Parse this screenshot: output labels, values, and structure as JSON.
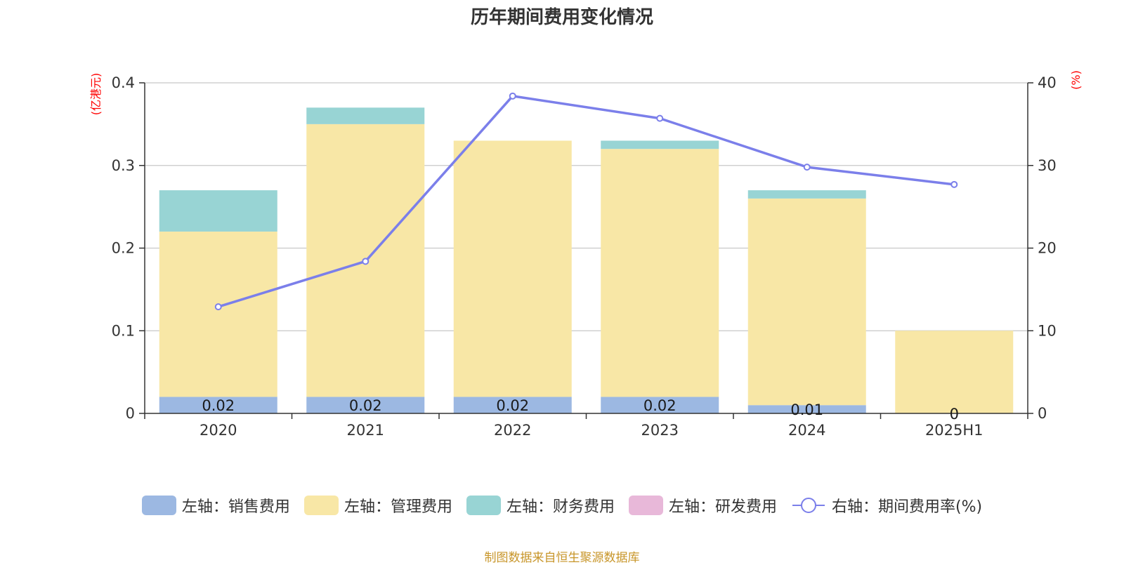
{
  "title": "历年期间费用变化情况",
  "left_axis_unit": "(亿港元)",
  "right_axis_unit": "(%)",
  "source": "制图数据来自恒生聚源数据库",
  "colors": {
    "sales": "#9cb8e2",
    "admin": "#f8e7a6",
    "finance": "#98d4d4",
    "rnd": "#e8b8d9",
    "rate": "#7b7fea",
    "unit_text": "#ff0000",
    "grid": "#c8c8c8",
    "axis": "#333333"
  },
  "legend": [
    {
      "key": "sales",
      "label": "左轴：销售费用",
      "kind": "bar"
    },
    {
      "key": "admin",
      "label": "左轴：管理费用",
      "kind": "bar"
    },
    {
      "key": "finance",
      "label": "左轴：财务费用",
      "kind": "bar"
    },
    {
      "key": "rnd",
      "label": "左轴：研发费用",
      "kind": "bar"
    },
    {
      "key": "rate",
      "label": "右轴：期间费用率(%)",
      "kind": "line"
    }
  ],
  "chart_data": {
    "type": "bar",
    "title": "历年期间费用变化情况",
    "categories": [
      "2020",
      "2021",
      "2022",
      "2023",
      "2024",
      "2025H1"
    ],
    "left_ylim": [
      0,
      0.4
    ],
    "left_ticks": [
      0,
      0.1,
      0.2,
      0.3,
      0.4
    ],
    "left_tick_labels": [
      "0",
      "0.1",
      "0.2",
      "0.3",
      "0.4"
    ],
    "right_ylim": [
      0,
      40
    ],
    "right_ticks": [
      0,
      10,
      20,
      30,
      40
    ],
    "right_tick_labels": [
      "0",
      "10",
      "20",
      "30",
      "40"
    ],
    "ylabel_left": "(亿港元)",
    "ylabel_right": "(%)",
    "grid": true,
    "legend_position": "bottom",
    "series": [
      {
        "key": "sales",
        "name": "左轴：销售费用",
        "axis": "left",
        "stack": true,
        "values": [
          0.02,
          0.02,
          0.02,
          0.02,
          0.01,
          0
        ],
        "labels": [
          "0.02",
          "0.02",
          "0.02",
          "0.02",
          "0.01",
          "0"
        ]
      },
      {
        "key": "admin",
        "name": "左轴：管理费用",
        "axis": "left",
        "stack": true,
        "values": [
          0.2,
          0.33,
          0.31,
          0.3,
          0.25,
          0.1
        ]
      },
      {
        "key": "finance",
        "name": "左轴：财务费用",
        "axis": "left",
        "stack": true,
        "values": [
          0.05,
          0.02,
          0,
          0.01,
          0.01,
          0
        ]
      },
      {
        "key": "rnd",
        "name": "左轴：研发费用",
        "axis": "left",
        "stack": true,
        "values": [
          0,
          0,
          0,
          0,
          0,
          0
        ]
      },
      {
        "key": "rate",
        "name": "右轴：期间费用率(%)",
        "axis": "right",
        "type": "line",
        "values": [
          12.9,
          18.4,
          38.4,
          35.7,
          29.8,
          27.7
        ]
      }
    ]
  }
}
